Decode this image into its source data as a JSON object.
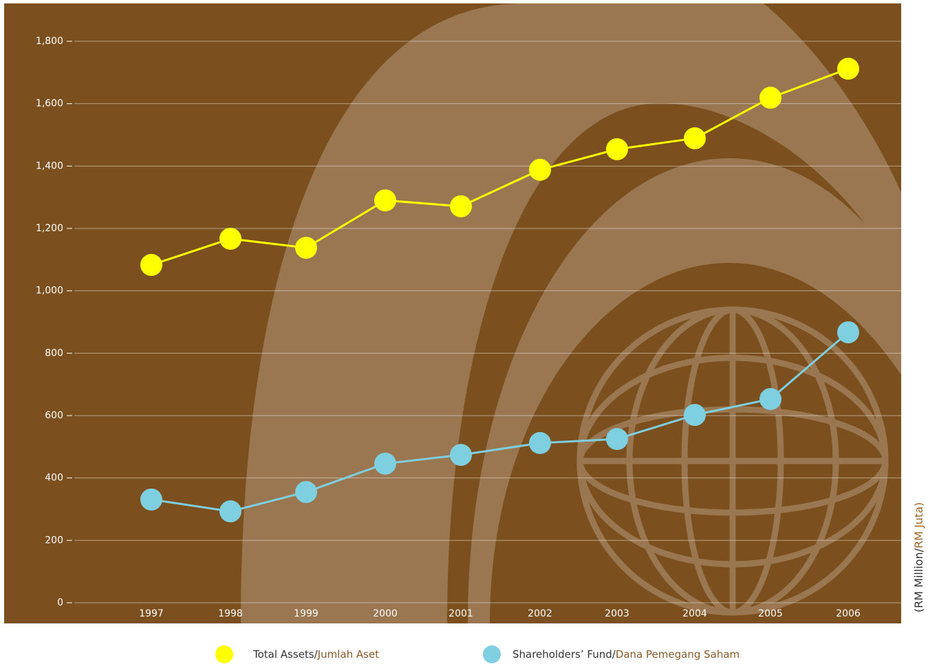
{
  "chart_data": {
    "type": "line",
    "y_label": "(RM Million/RM Juta)",
    "categories": [
      "1997",
      "1998",
      "1999",
      "2000",
      "2001",
      "2002",
      "2003",
      "2004",
      "2005",
      "2006"
    ],
    "series": [
      {
        "name": "Total Assets/Jumlah Aset",
        "color": "#ffff00",
        "values": [
          1083,
          1167,
          1138,
          1290,
          1271,
          1388,
          1454,
          1489,
          1619,
          1712
        ]
      },
      {
        "name": "Shareholders’ Fund/Dana Pemegang Saham",
        "color": "#7ecfe0",
        "values": [
          331,
          293,
          355,
          446,
          474,
          512,
          525,
          602,
          653,
          867
        ]
      }
    ],
    "ylim": [
      0,
      1800
    ],
    "yticks": [
      0,
      200,
      400,
      600,
      800,
      {
        "value": 1000,
        "label": "1,000"
      },
      {
        "value": 1200,
        "label": "1,200"
      },
      {
        "value": 1400,
        "label": "1,400"
      },
      {
        "value": 1600,
        "label": "1,600"
      },
      {
        "value": 1800,
        "label": "1,800"
      }
    ],
    "grid": true
  }
}
